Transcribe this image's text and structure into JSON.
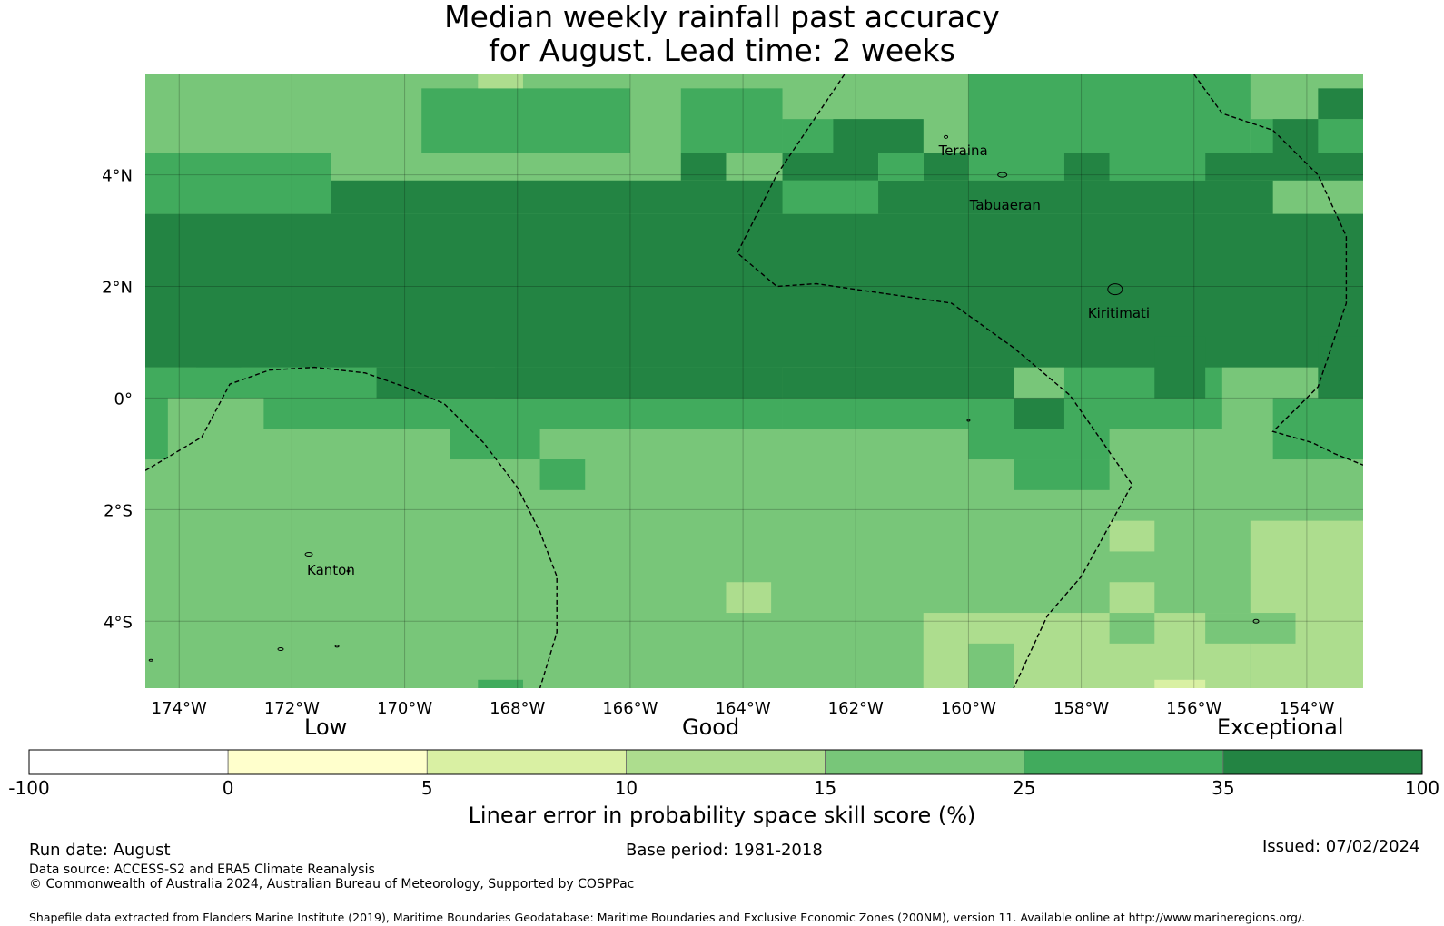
{
  "title": {
    "line1": "Median weekly rainfall past accuracy",
    "line2": "for August. Lead time: 2 weeks"
  },
  "map": {
    "lon_range": [
      -174.6,
      -153.0
    ],
    "lat_range": [
      -5.2,
      5.8
    ],
    "x_ticks": [
      "174°W",
      "172°W",
      "170°W",
      "168°W",
      "166°W",
      "164°W",
      "162°W",
      "160°W",
      "158°W",
      "156°W",
      "154°W"
    ],
    "y_ticks": [
      "4°N",
      "2°N",
      "0°",
      "2°S",
      "4°S"
    ],
    "places": [
      {
        "name": "Teraina",
        "lon": -160.4,
        "lat": 4.7
      },
      {
        "name": "Tabuaeran",
        "lon": -159.4,
        "lat": 3.9
      },
      {
        "name": "Kiritimati",
        "lon": -157.4,
        "lat": 1.9
      },
      {
        "name": "Kanton",
        "lon": -171.7,
        "lat": -2.8
      }
    ],
    "background_class": 4,
    "cell_deg": 0.833,
    "class_regions": [
      {
        "class": 5,
        "lon": [
          -169.7,
          -166.0
        ],
        "lat": [
          4.4,
          5.55
        ]
      },
      {
        "class": 5,
        "lon": [
          -165.1,
          -163.3
        ],
        "lat": [
          4.4,
          5.55
        ]
      },
      {
        "class": 5,
        "lon": [
          -163.3,
          -160.8
        ],
        "lat": [
          4.4,
          5.0
        ]
      },
      {
        "class": 5,
        "lon": [
          -160.0,
          -155.0
        ],
        "lat": [
          3.9,
          5.8
        ]
      },
      {
        "class": 5,
        "lon": [
          -174.6,
          -171.3
        ],
        "lat": [
          3.3,
          4.4
        ]
      },
      {
        "class": 5,
        "lon": [
          -155.0,
          -153.0
        ],
        "lat": [
          4.4,
          5.0
        ]
      },
      {
        "class": 5,
        "lon": [
          -174.6,
          -174.2
        ],
        "lat": [
          -1.1,
          0.0
        ]
      },
      {
        "class": 5,
        "lon": [
          -172.5,
          -163.3
        ],
        "lat": [
          -0.55,
          0.0
        ]
      },
      {
        "class": 5,
        "lon": [
          -169.2,
          -167.6
        ],
        "lat": [
          -1.1,
          -0.55
        ]
      },
      {
        "class": 5,
        "lon": [
          -163.3,
          -155.5
        ],
        "lat": [
          -0.55,
          0.0
        ]
      },
      {
        "class": 5,
        "lon": [
          -160.0,
          -157.5
        ],
        "lat": [
          -1.1,
          -0.55
        ]
      },
      {
        "class": 5,
        "lon": [
          -159.2,
          -157.5
        ],
        "lat": [
          -1.65,
          -1.1
        ]
      },
      {
        "class": 5,
        "lon": [
          -154.6,
          -153.0
        ],
        "lat": [
          -1.1,
          0.0
        ]
      },
      {
        "class": 5,
        "lon": [
          -167.6,
          -166.8
        ],
        "lat": [
          -1.65,
          -1.1
        ]
      },
      {
        "class": 5,
        "lon": [
          -173.7,
          -172.9
        ],
        "lat": [
          0.0,
          1.1
        ]
      },
      {
        "class": 5,
        "lon": [
          -158.3,
          -155.5
        ],
        "lat": [
          0.0,
          1.65
        ]
      },
      {
        "class": 5,
        "lon": [
          -174.6,
          -170.5
        ],
        "lat": [
          0.0,
          0.55
        ]
      },
      {
        "class": 5,
        "lon": [
          -168.4,
          -163.3
        ],
        "lat": [
          0.0,
          0.55
        ]
      },
      {
        "class": 6,
        "lon": [
          -174.6,
          -153.0
        ],
        "lat": [
          0.55,
          3.3
        ]
      },
      {
        "class": 6,
        "lon": [
          -171.3,
          -154.6
        ],
        "lat": [
          3.3,
          3.9
        ]
      },
      {
        "class": 6,
        "lon": [
          -165.1,
          -164.3
        ],
        "lat": [
          3.9,
          4.4
        ]
      },
      {
        "class": 6,
        "lon": [
          -163.3,
          -161.6
        ],
        "lat": [
          3.9,
          4.4
        ]
      },
      {
        "class": 6,
        "lon": [
          -162.4,
          -160.8
        ],
        "lat": [
          4.4,
          5.0
        ]
      },
      {
        "class": 6,
        "lon": [
          -160.8,
          -160.0
        ],
        "lat": [
          3.9,
          4.4
        ]
      },
      {
        "class": 6,
        "lon": [
          -158.3,
          -157.5
        ],
        "lat": [
          3.9,
          4.4
        ]
      },
      {
        "class": 6,
        "lon": [
          -155.8,
          -153.0
        ],
        "lat": [
          3.9,
          4.4
        ]
      },
      {
        "class": 6,
        "lon": [
          -154.6,
          -153.8
        ],
        "lat": [
          4.4,
          5.0
        ]
      },
      {
        "class": 6,
        "lon": [
          -153.8,
          -153.0
        ],
        "lat": [
          5.0,
          5.55
        ]
      },
      {
        "class": 6,
        "lon": [
          -170.5,
          -163.3
        ],
        "lat": [
          0.0,
          0.55
        ]
      },
      {
        "class": 6,
        "lon": [
          -163.3,
          -159.2
        ],
        "lat": [
          0.0,
          0.55
        ]
      },
      {
        "class": 6,
        "lon": [
          -159.2,
          -158.3
        ],
        "lat": [
          -0.55,
          0.0
        ]
      },
      {
        "class": 6,
        "lon": [
          -156.7,
          -155.8
        ],
        "lat": [
          0.0,
          1.1
        ]
      },
      {
        "class": 6,
        "lon": [
          -153.8,
          -153.0
        ],
        "lat": [
          0.0,
          1.1
        ]
      },
      {
        "class": 5,
        "lon": [
          -163.3,
          -161.6
        ],
        "lat": [
          3.3,
          3.9
        ]
      },
      {
        "class": 5,
        "lon": [
          -161.6,
          -160.8
        ],
        "lat": [
          3.9,
          4.4
        ]
      },
      {
        "class": 5,
        "lon": [
          -157.5,
          -155.8
        ],
        "lat": [
          3.9,
          4.4
        ]
      },
      {
        "class": 3,
        "lon": [
          -157.5,
          -156.7
        ],
        "lat": [
          -2.75,
          -2.2
        ]
      },
      {
        "class": 3,
        "lon": [
          -155.0,
          -153.0
        ],
        "lat": [
          -5.2,
          -2.2
        ]
      },
      {
        "class": 3,
        "lon": [
          -164.3,
          -163.5
        ],
        "lat": [
          -3.85,
          -3.3
        ]
      },
      {
        "class": 3,
        "lon": [
          -157.5,
          -156.7
        ],
        "lat": [
          -3.85,
          -3.3
        ]
      },
      {
        "class": 3,
        "lon": [
          -160.8,
          -155.0
        ],
        "lat": [
          -5.2,
          -3.85
        ]
      },
      {
        "class": 4,
        "lon": [
          -157.5,
          -156.7
        ],
        "lat": [
          -4.4,
          -3.85
        ]
      },
      {
        "class": 4,
        "lon": [
          -155.8,
          -154.2
        ],
        "lat": [
          -4.4,
          -3.85
        ]
      },
      {
        "class": 4,
        "lon": [
          -160.0,
          -159.2
        ],
        "lat": [
          -5.2,
          -4.4
        ]
      },
      {
        "class": 3,
        "lon": [
          -168.7,
          -167.9
        ],
        "lat": [
          5.55,
          5.8
        ]
      },
      {
        "class": 2,
        "lon": [
          -156.7,
          -155.8
        ],
        "lat": [
          -5.2,
          -5.05
        ]
      },
      {
        "class": 5,
        "lon": [
          -168.7,
          -167.9
        ],
        "lat": [
          -5.2,
          -5.05
        ]
      }
    ],
    "dashed_boundaries_lonlat": [
      [
        [
          -174.6,
          -1.3
        ],
        [
          -173.6,
          -0.7
        ],
        [
          -173.1,
          0.25
        ],
        [
          -172.4,
          0.5
        ],
        [
          -171.6,
          0.55
        ],
        [
          -170.7,
          0.45
        ],
        [
          -170.0,
          0.2
        ],
        [
          -169.3,
          -0.1
        ],
        [
          -168.6,
          -0.8
        ],
        [
          -168.0,
          -1.6
        ],
        [
          -167.6,
          -2.4
        ],
        [
          -167.3,
          -3.2
        ],
        [
          -167.3,
          -4.2
        ],
        [
          -167.6,
          -5.2
        ]
      ],
      [
        [
          -162.2,
          5.8
        ],
        [
          -163.4,
          4.0
        ],
        [
          -164.1,
          2.6
        ],
        [
          -163.4,
          2.0
        ],
        [
          -162.7,
          2.05
        ],
        [
          -160.3,
          1.7
        ],
        [
          -159.2,
          0.9
        ],
        [
          -158.2,
          0.05
        ],
        [
          -157.1,
          -1.55
        ],
        [
          -158.0,
          -3.2
        ],
        [
          -158.6,
          -3.9
        ],
        [
          -159.2,
          -5.2
        ]
      ],
      [
        [
          -156.0,
          5.8
        ],
        [
          -155.5,
          5.1
        ],
        [
          -154.6,
          4.8
        ],
        [
          -153.8,
          4.0
        ],
        [
          -153.3,
          2.9
        ],
        [
          -153.3,
          1.7
        ],
        [
          -153.8,
          0.2
        ],
        [
          -154.6,
          -0.6
        ],
        [
          -153.9,
          -0.8
        ],
        [
          -153.5,
          -1.0
        ],
        [
          -153.0,
          -1.2
        ]
      ]
    ]
  },
  "colorbar": {
    "categories": {
      "low": "Low",
      "good": "Good",
      "exceptional": "Exceptional"
    },
    "ticks": [
      "-100",
      "0",
      "5",
      "10",
      "15",
      "25",
      "35",
      "100"
    ],
    "colors": [
      "#ffffff",
      "#ffffcc",
      "#d9f0a3",
      "#addd8e",
      "#78c679",
      "#41ab5d",
      "#238443"
    ],
    "label": "Linear error in probability space skill score (%)"
  },
  "footer": {
    "run_date": "Run date: August",
    "base_period": "Base period: 1981-2018",
    "issued": "Issued: 07/02/2024",
    "data_source": "Data source: ACCESS-S2 and ERA5 Climate Reanalysis",
    "copyright": "© Commonwealth of Australia 2024, Australian Bureau of Meteorology, Supported by COSPPac",
    "shapefile": "Shapefile data extracted from Flanders Marine Institute (2019), Maritime Boundaries Geodatabase: Maritime Boundaries and Exclusive Economic Zones (200NM), version 11. Available online at http://www.marineregions.org/."
  }
}
